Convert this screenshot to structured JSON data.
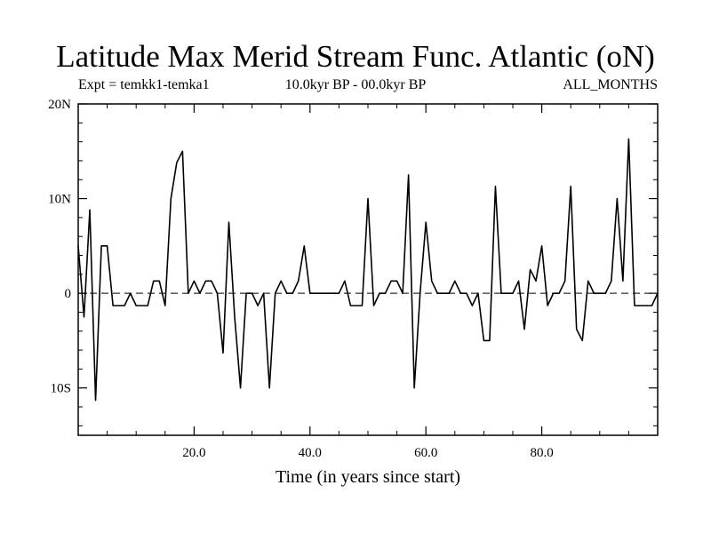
{
  "chart_data": {
    "type": "line",
    "title": "Latitude Max Merid Stream Func. Atlantic (oN)",
    "subtitle_left": "Expt = temkk1-temka1",
    "subtitle_center": "10.0kyr BP - 00.0kyr BP",
    "subtitle_right": "ALL_MONTHS",
    "xlabel": "Time (in years since start)",
    "ylabel": "",
    "xlim": [
      0,
      100
    ],
    "ylim": [
      -15,
      20
    ],
    "xticks": [
      20,
      40,
      60,
      80
    ],
    "xtick_labels": [
      "20.0",
      "40.0",
      "60.0",
      "80.0"
    ],
    "yticks": [
      -10,
      0,
      10,
      20
    ],
    "ytick_labels": [
      "10S",
      "0",
      "10N",
      "20N"
    ],
    "zero_line": true,
    "grid": false,
    "series": [
      {
        "color": "#000000",
        "x": [
          0,
          1,
          2,
          3,
          4,
          5,
          6,
          7,
          8,
          9,
          10,
          11,
          12,
          13,
          14,
          15,
          16,
          17,
          18,
          19,
          20,
          21,
          22,
          23,
          24,
          25,
          26,
          27,
          28,
          29,
          30,
          31,
          32,
          33,
          34,
          35,
          36,
          37,
          38,
          39,
          40,
          41,
          42,
          43,
          44,
          45,
          46,
          47,
          48,
          49,
          50,
          51,
          52,
          53,
          54,
          55,
          56,
          57,
          58,
          59,
          60,
          61,
          62,
          63,
          64,
          65,
          66,
          67,
          68,
          69,
          70,
          71,
          72,
          73,
          74,
          75,
          76,
          77,
          78,
          79,
          80,
          81,
          82,
          83,
          84,
          85,
          86,
          87,
          88,
          89,
          90,
          91,
          92,
          93,
          94,
          95,
          96,
          97,
          98,
          99,
          100
        ],
        "y": [
          5,
          -2.5,
          8.8,
          -11.3,
          5,
          5,
          -1.3,
          -1.3,
          -1.3,
          0,
          -1.3,
          -1.3,
          -1.3,
          1.3,
          1.3,
          -1.3,
          10,
          13.8,
          15,
          0,
          1.3,
          0,
          1.3,
          1.3,
          0,
          -6.3,
          7.5,
          -2.5,
          -10,
          0,
          0,
          -1.3,
          0,
          -10,
          0,
          1.3,
          0,
          0,
          1.3,
          5,
          0,
          0,
          0,
          0,
          0,
          0,
          1.3,
          -1.3,
          -1.3,
          -1.3,
          10,
          -1.3,
          0,
          0,
          1.3,
          1.3,
          0,
          12.5,
          -10,
          0,
          7.5,
          1.3,
          0,
          0,
          0,
          1.3,
          0,
          0,
          -1.3,
          0,
          -5,
          -5,
          11.3,
          0,
          0,
          0,
          1.3,
          -3.8,
          2.5,
          1.3,
          5,
          -1.3,
          0,
          0,
          1.3,
          11.3,
          -3.8,
          -5,
          1.3,
          0,
          0,
          0,
          1.3,
          10,
          1.3,
          16.3,
          -1.3,
          -1.3,
          -1.3,
          -1.3,
          0
        ]
      }
    ]
  }
}
